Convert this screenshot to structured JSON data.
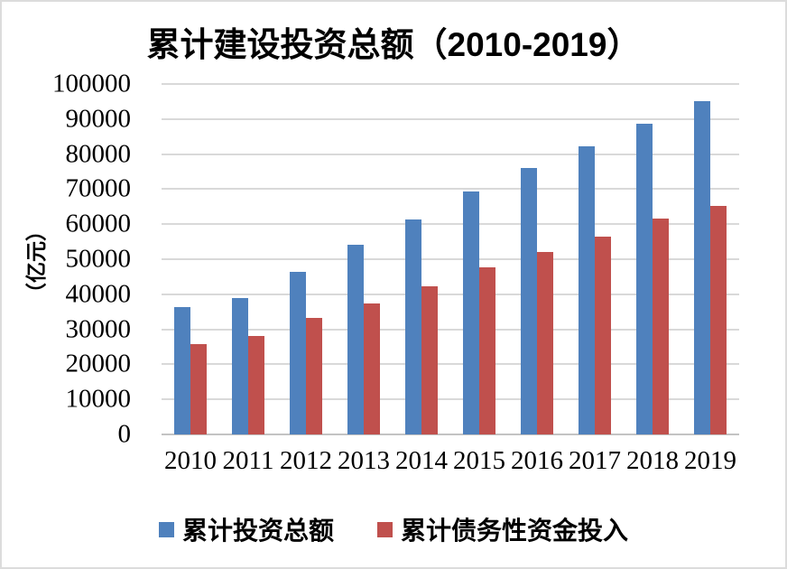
{
  "frame": {
    "background": "#ffffff",
    "border_color": "#dcdcdc"
  },
  "chart_data": {
    "type": "bar",
    "title": "累计建设投资总额（2010-2019）",
    "xlabel": "",
    "ylabel": "（亿元）",
    "categories": [
      "2010",
      "2011",
      "2012",
      "2013",
      "2014",
      "2015",
      "2016",
      "2017",
      "2018",
      "2019"
    ],
    "series": [
      {
        "name": "累计投资总额",
        "color": "#4f81bd",
        "values": [
          36300,
          39000,
          46400,
          54200,
          61400,
          69300,
          76000,
          82200,
          88700,
          95100
        ]
      },
      {
        "name": "累计债务性资金投入",
        "color": "#c0504d",
        "values": [
          25900,
          28000,
          33300,
          37300,
          42400,
          47600,
          52100,
          56500,
          61700,
          65300
        ]
      }
    ],
    "ylim": [
      0,
      100000
    ],
    "yticks": [
      0,
      10000,
      20000,
      30000,
      40000,
      50000,
      60000,
      70000,
      80000,
      90000,
      100000
    ],
    "grid": true,
    "gridline_color": "#d9d9d9",
    "axis_line_color": "#c3c3c3",
    "legend_position": "bottom"
  }
}
